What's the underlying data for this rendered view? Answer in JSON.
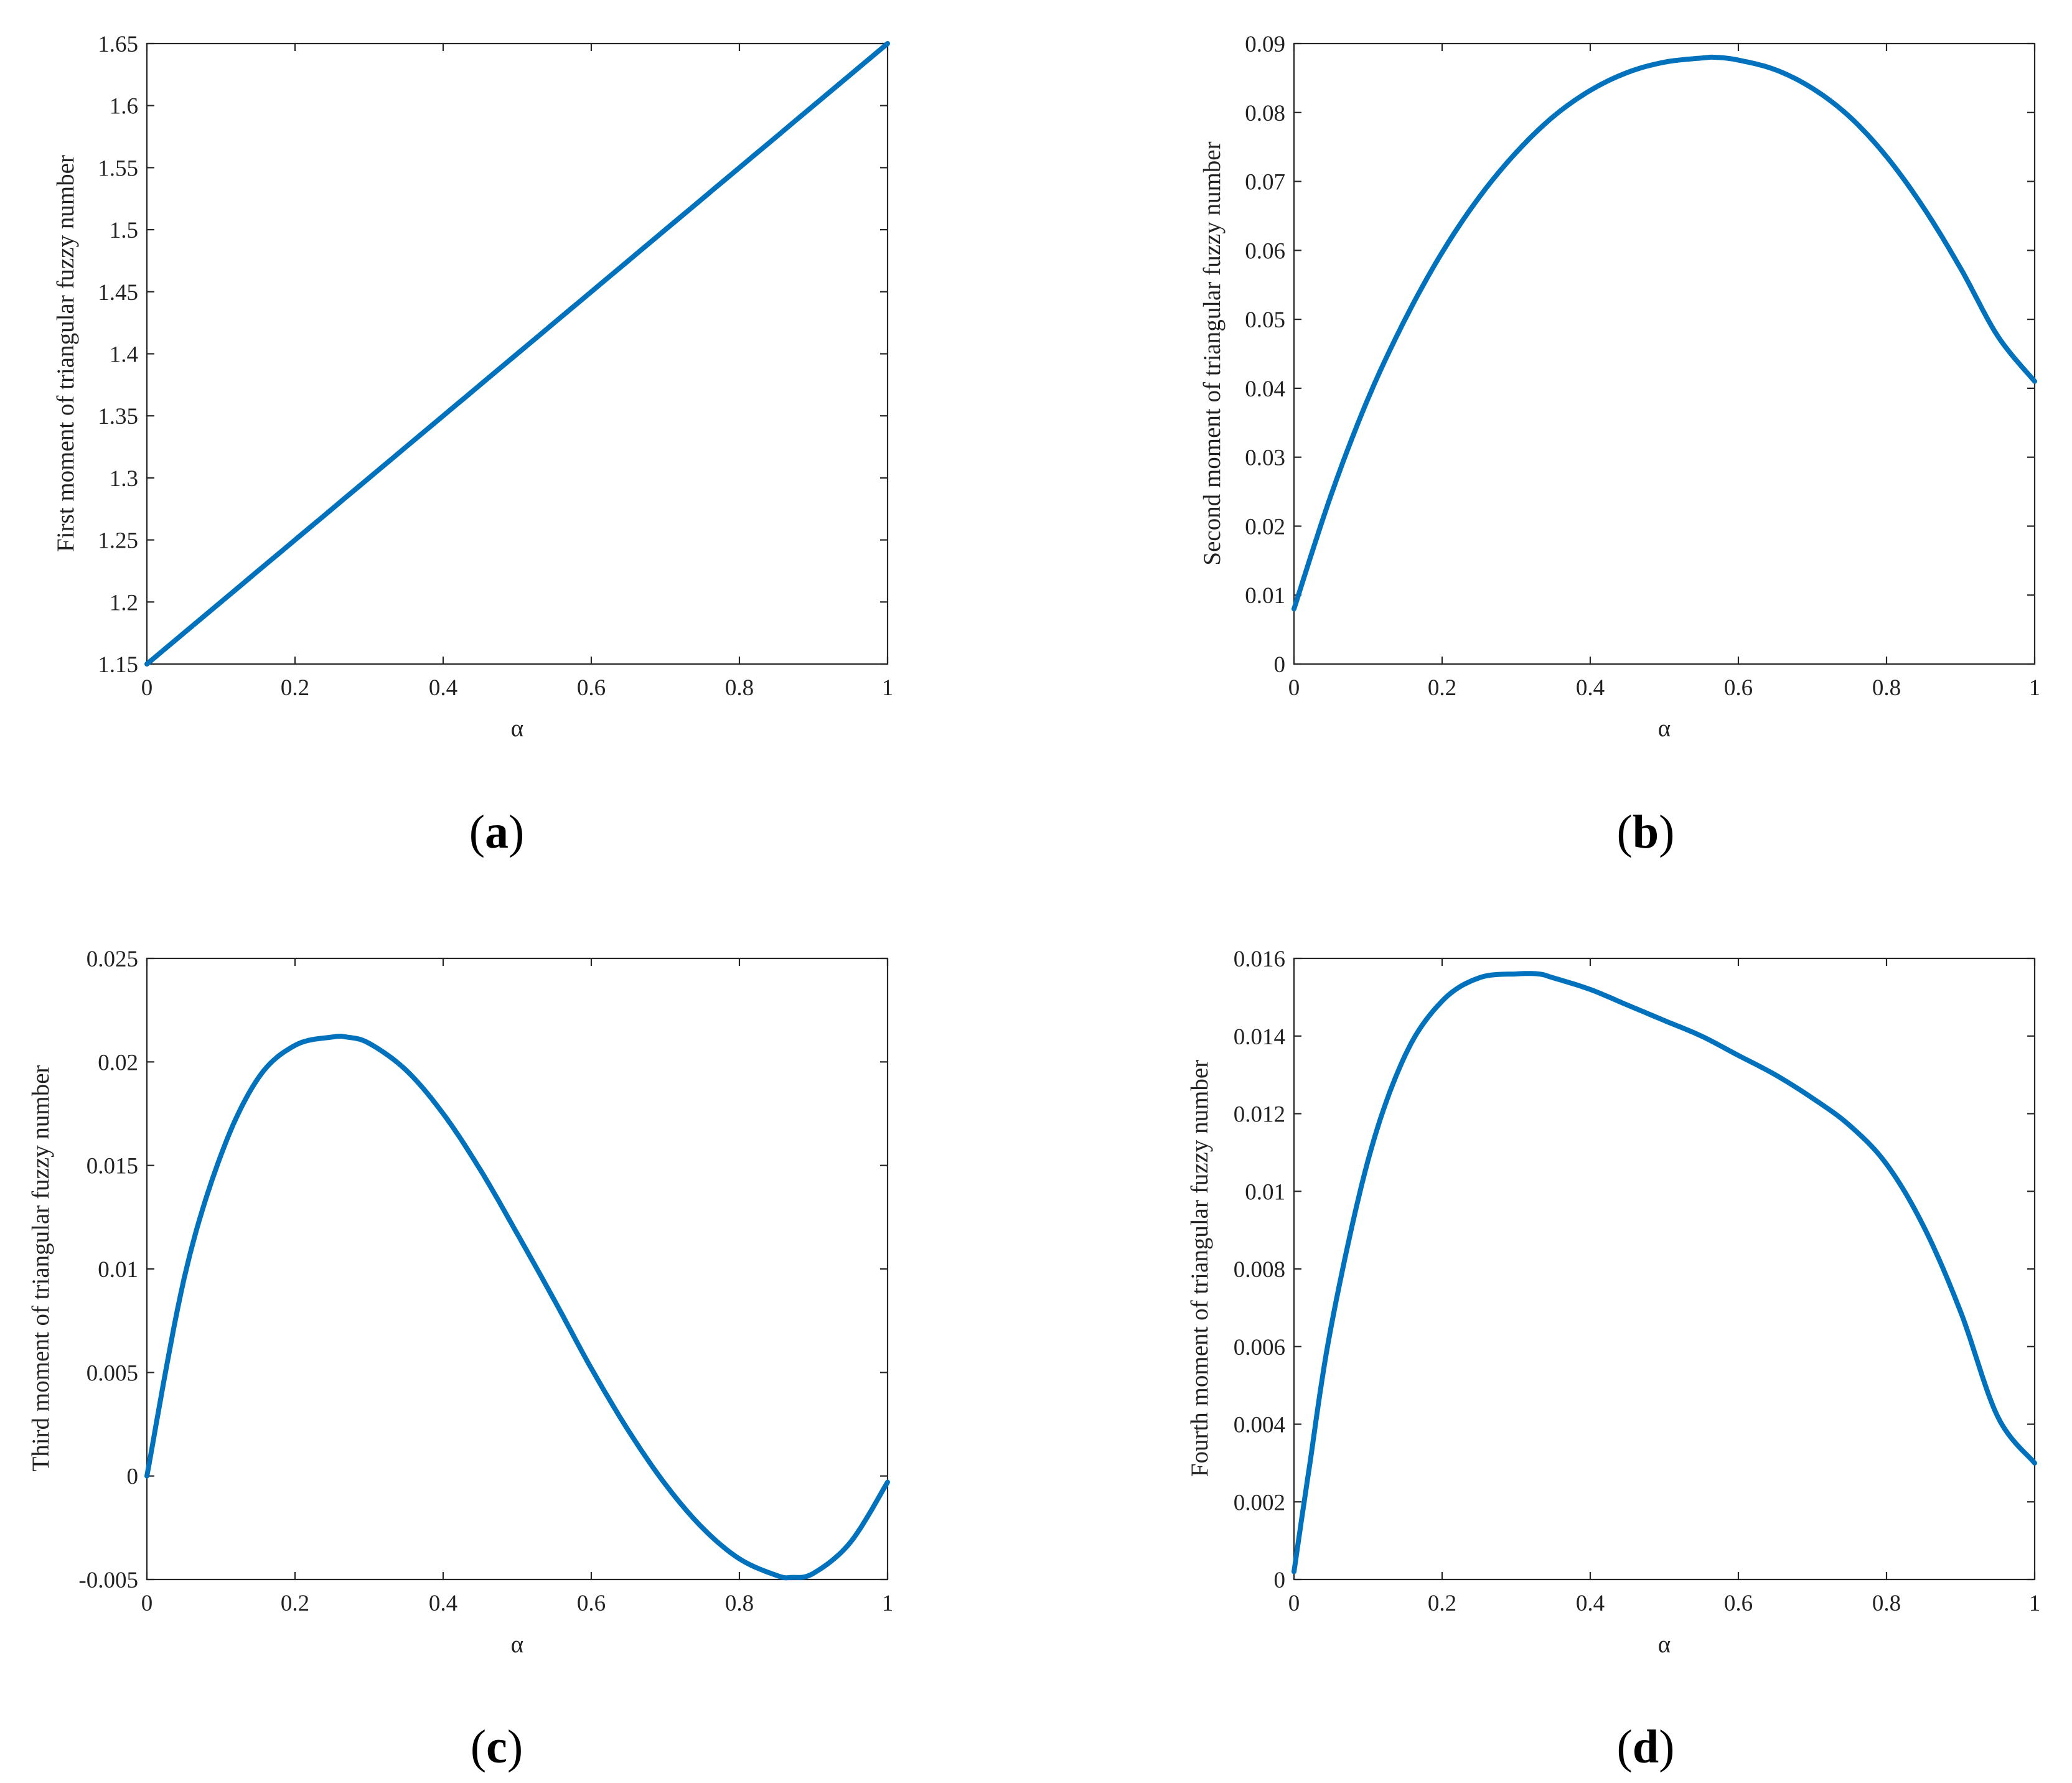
{
  "colors": {
    "series": "#0072BD",
    "axes": "#262626",
    "background": "#ffffff"
  },
  "chart_data": [
    {
      "type": "line",
      "panel": "(a)",
      "panel_letter": "a",
      "xlabel": "α",
      "ylabel": "First moment of triangular fuzzy number",
      "xlim": [
        0,
        1
      ],
      "ylim": [
        1.15,
        1.65
      ],
      "xticks": [
        0,
        0.2,
        0.4,
        0.6,
        0.8,
        1
      ],
      "xtick_labels": [
        "0",
        "0.2",
        "0.4",
        "0.6",
        "0.8",
        "1"
      ],
      "yticks": [
        1.15,
        1.2,
        1.25,
        1.3,
        1.35,
        1.4,
        1.45,
        1.5,
        1.55,
        1.6,
        1.65
      ],
      "ytick_labels": [
        "1.15",
        "1.2",
        "1.25",
        "1.3",
        "1.35",
        "1.4",
        "1.45",
        "1.5",
        "1.55",
        "1.6",
        "1.65"
      ],
      "grid": false,
      "series": [
        {
          "x": [
            0,
            0.2,
            0.4,
            0.6,
            0.8,
            1.0
          ],
          "y": [
            1.15,
            1.25,
            1.35,
            1.45,
            1.55,
            1.65
          ]
        }
      ]
    },
    {
      "type": "line",
      "panel": "(b)",
      "panel_letter": "b",
      "xlabel": "α",
      "ylabel": "Second moment of triangular fuzzy number",
      "xlim": [
        0,
        1
      ],
      "ylim": [
        0,
        0.09
      ],
      "xticks": [
        0,
        0.2,
        0.4,
        0.6,
        0.8,
        1
      ],
      "xtick_labels": [
        "0",
        "0.2",
        "0.4",
        "0.6",
        "0.8",
        "1"
      ],
      "yticks": [
        0,
        0.01,
        0.02,
        0.03,
        0.04,
        0.05,
        0.06,
        0.07,
        0.08,
        0.09
      ],
      "ytick_labels": [
        "0",
        "0.01",
        "0.02",
        "0.03",
        "0.04",
        "0.05",
        "0.06",
        "0.07",
        "0.08",
        "0.09"
      ],
      "grid": false,
      "series": [
        {
          "x": [
            0,
            0.05,
            0.1,
            0.15,
            0.2,
            0.25,
            0.3,
            0.35,
            0.4,
            0.45,
            0.5,
            0.55,
            0.57,
            0.6,
            0.65,
            0.7,
            0.75,
            0.8,
            0.85,
            0.9,
            0.95,
            1.0
          ],
          "y": [
            0.008,
            0.0245,
            0.0385,
            0.05,
            0.0597,
            0.0677,
            0.0742,
            0.0794,
            0.0832,
            0.0858,
            0.0873,
            0.0879,
            0.088,
            0.0876,
            0.0862,
            0.0835,
            0.0794,
            0.0736,
            0.0662,
            0.0574,
            0.0476,
            0.041
          ]
        }
      ]
    },
    {
      "type": "line",
      "panel": "(c)",
      "panel_letter": "c",
      "xlabel": "α",
      "ylabel": "Third moment of triangular fuzzy number",
      "xlim": [
        0,
        1
      ],
      "ylim": [
        -0.005,
        0.025
      ],
      "xticks": [
        0,
        0.2,
        0.4,
        0.6,
        0.8,
        1
      ],
      "xtick_labels": [
        "0",
        "0.2",
        "0.4",
        "0.6",
        "0.8",
        "1"
      ],
      "yticks": [
        -0.005,
        0,
        0.005,
        0.01,
        0.015,
        0.02,
        0.025
      ],
      "ytick_labels": [
        "-0.005",
        "0",
        "0.005",
        "0.01",
        "0.015",
        "0.02",
        "0.025"
      ],
      "grid": false,
      "series": [
        {
          "x": [
            0,
            0.05,
            0.1,
            0.15,
            0.2,
            0.25,
            0.27,
            0.3,
            0.35,
            0.4,
            0.45,
            0.5,
            0.55,
            0.6,
            0.65,
            0.7,
            0.75,
            0.8,
            0.85,
            0.87,
            0.9,
            0.95,
            1.0
          ],
          "y": [
            0.0,
            0.0095,
            0.0155,
            0.0192,
            0.0208,
            0.0212,
            0.0212,
            0.0209,
            0.0196,
            0.0175,
            0.0148,
            0.0117,
            0.0085,
            0.0052,
            0.0022,
            -0.0004,
            -0.0025,
            -0.004,
            -0.0048,
            -0.0049,
            -0.0047,
            -0.0032,
            -0.0003
          ]
        }
      ]
    },
    {
      "type": "line",
      "panel": "(d)",
      "panel_letter": "d",
      "xlabel": "α",
      "ylabel": "Fourth moment of triangular fuzzy number",
      "xlim": [
        0,
        1
      ],
      "ylim": [
        0,
        0.016
      ],
      "xticks": [
        0,
        0.2,
        0.4,
        0.6,
        0.8,
        1
      ],
      "xtick_labels": [
        "0",
        "0.2",
        "0.4",
        "0.6",
        "0.8",
        "1"
      ],
      "yticks": [
        0,
        0.002,
        0.004,
        0.006,
        0.008,
        0.01,
        0.012,
        0.014,
        0.016
      ],
      "ytick_labels": [
        "0",
        "0.002",
        "0.004",
        "0.006",
        "0.008",
        "0.01",
        "0.012",
        "0.014",
        "0.016"
      ],
      "grid": false,
      "series": [
        {
          "x": [
            0,
            0.02,
            0.05,
            0.1,
            0.15,
            0.2,
            0.25,
            0.3,
            0.33,
            0.35,
            0.4,
            0.45,
            0.5,
            0.55,
            0.6,
            0.65,
            0.7,
            0.75,
            0.8,
            0.85,
            0.9,
            0.95,
            1.0
          ],
          "y": [
            0.0002,
            0.0028,
            0.0065,
            0.0108,
            0.0135,
            0.0149,
            0.0155,
            0.0156,
            0.0156,
            0.0155,
            0.0152,
            0.0148,
            0.0144,
            0.014,
            0.0135,
            0.013,
            0.0124,
            0.0117,
            0.0107,
            0.0091,
            0.0069,
            0.0042,
            0.003
          ]
        }
      ]
    }
  ]
}
